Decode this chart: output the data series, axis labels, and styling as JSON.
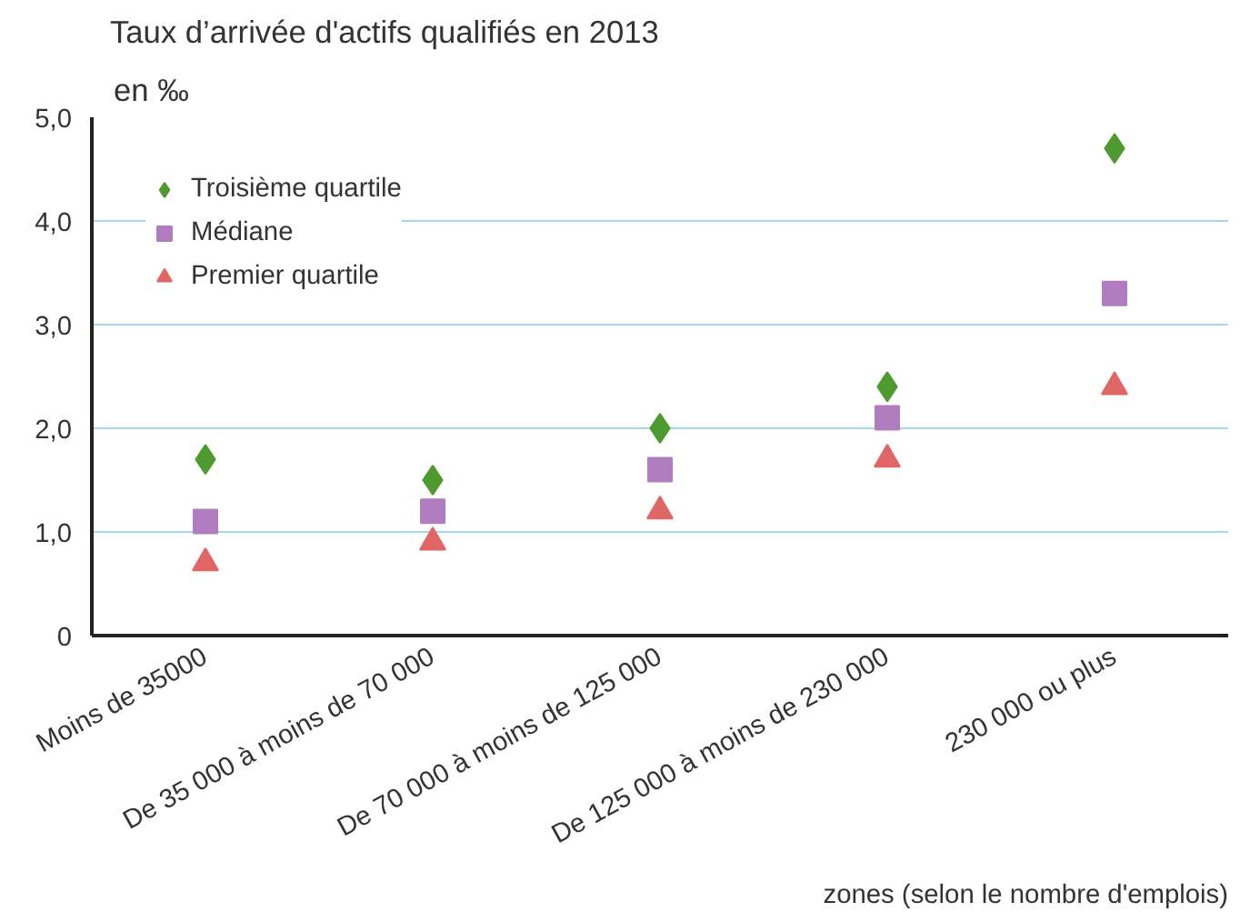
{
  "chart_data": {
    "type": "scatter",
    "title": "Taux d’arrivée d'actifs qualifiés en 2013",
    "ylabel": "en ‰",
    "xlabel": "zones (selon le nombre d'emplois)",
    "categories": [
      "Moins de 35000",
      "De 35 000 à moins de 70 000",
      "De 70 000 à moins de 125 000",
      "De 125 000 à moins de 230 000",
      "230 000 ou plus"
    ],
    "series": [
      {
        "name": "Troisième quartile",
        "color": "#4e9a2f",
        "marker": "diamond",
        "values": [
          1.7,
          1.5,
          2.0,
          2.4,
          4.7
        ]
      },
      {
        "name": "Médiane",
        "color": "#b07cc0",
        "marker": "square",
        "values": [
          1.1,
          1.2,
          1.6,
          2.1,
          3.3
        ]
      },
      {
        "name": "Premier quartile",
        "color": "#e06666",
        "marker": "triangle",
        "values": [
          0.7,
          0.9,
          1.2,
          1.7,
          2.4
        ]
      }
    ],
    "ylim": [
      0,
      5
    ],
    "yticks": [
      0,
      {
        "value": 1,
        "label": "1,0"
      },
      {
        "value": 2,
        "label": "2,0"
      },
      {
        "value": 3,
        "label": "3,0"
      },
      {
        "value": 4,
        "label": "4,0"
      },
      {
        "value": 5,
        "label": "5,0"
      }
    ],
    "grid": "y",
    "legend": "top left"
  }
}
